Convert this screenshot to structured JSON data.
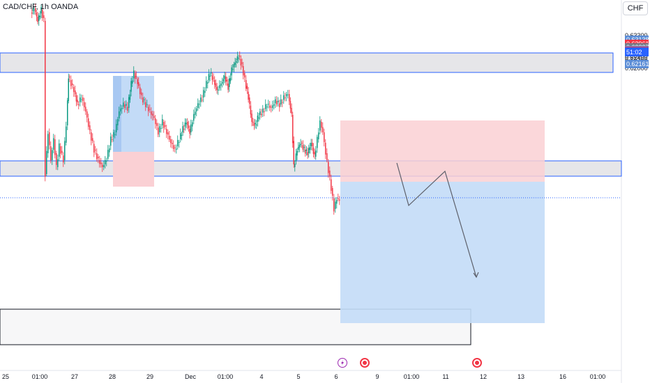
{
  "header": {
    "symbol": "CAD/CHF, 1h OANDA"
  },
  "currency_button": "CHF",
  "price_axis": {
    "labels": [
      "0.63300",
      "0.63200",
      "0.63100",
      "0.63000",
      "0.62900",
      "0.62800",
      "0.62600",
      "0.62500",
      "0.62400",
      "0.62300",
      "0.62200",
      "0.62100",
      "0.62000"
    ]
  },
  "price_tags": [
    {
      "text": "0.63138",
      "color": "#5b8dd6",
      "value": 0.63138
    },
    {
      "text": "0.62961",
      "color": "#f23645",
      "value": 0.62961
    },
    {
      "text": "0.62837",
      "color": "#787b86",
      "value": 0.62837
    },
    {
      "text": "0.62718",
      "color": "#5b8dd6",
      "value": 0.62718
    },
    {
      "text": "0.62702",
      "color": "#f23645",
      "value": 0.62702
    },
    {
      "text": "0.62658",
      "color": "#2962ff",
      "value": 0.62658
    },
    {
      "text": "51:02",
      "color": "#2962ff",
      "value": 0.62638
    },
    {
      "text": "0.62161",
      "color": "#5b8dd6",
      "value": 0.62161
    }
  ],
  "time_axis": {
    "labels": [
      "25",
      "01:00",
      "27",
      "28",
      "29",
      "Dec",
      "01:00",
      "4",
      "5",
      "6",
      "9",
      "01:00",
      "11",
      "12",
      "13",
      "16",
      "01:00"
    ]
  },
  "colors": {
    "up": "#089981",
    "down": "#f23645",
    "zone_border": "#2962ff",
    "zone_fill": "#e6e6e9",
    "target_fill": "#c3dbf7",
    "stop_fill": "#fad0d4"
  },
  "icons": {
    "events": [
      "dividend-event-icon",
      "economic-event-icon",
      "economic-event-icon"
    ]
  }
}
